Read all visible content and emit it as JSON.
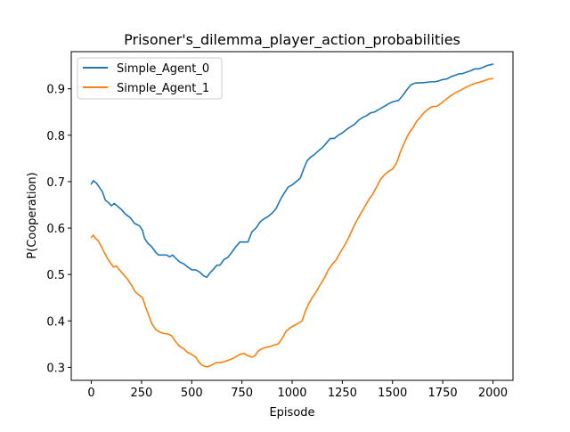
{
  "chart_data": {
    "type": "line",
    "title": "Prisoner's_dilemma_player_action_probabilities",
    "xlabel": "Episode",
    "ylabel": "P(Cooperation)",
    "xlim": [
      -100,
      2100
    ],
    "ylim": [
      0.272,
      0.98
    ],
    "xticks": [
      0,
      250,
      500,
      750,
      1000,
      1250,
      1500,
      1750,
      2000
    ],
    "yticks": [
      0.3,
      0.4,
      0.5,
      0.6,
      0.7,
      0.8,
      0.9
    ],
    "legend_position": "top-left",
    "series": [
      {
        "name": "Simple_Agent_0",
        "color": "#1f77b4",
        "points": [
          [
            0,
            0.695
          ],
          [
            10,
            0.702
          ],
          [
            25,
            0.697
          ],
          [
            40,
            0.688
          ],
          [
            55,
            0.678
          ],
          [
            70,
            0.66
          ],
          [
            85,
            0.655
          ],
          [
            100,
            0.648
          ],
          [
            115,
            0.653
          ],
          [
            130,
            0.647
          ],
          [
            150,
            0.64
          ],
          [
            170,
            0.63
          ],
          [
            195,
            0.622
          ],
          [
            215,
            0.61
          ],
          [
            240,
            0.605
          ],
          [
            255,
            0.595
          ],
          [
            265,
            0.578
          ],
          [
            280,
            0.568
          ],
          [
            300,
            0.56
          ],
          [
            320,
            0.548
          ],
          [
            335,
            0.542
          ],
          [
            355,
            0.542
          ],
          [
            375,
            0.542
          ],
          [
            390,
            0.538
          ],
          [
            405,
            0.542
          ],
          [
            420,
            0.535
          ],
          [
            440,
            0.527
          ],
          [
            460,
            0.523
          ],
          [
            480,
            0.516
          ],
          [
            500,
            0.51
          ],
          [
            520,
            0.51
          ],
          [
            540,
            0.505
          ],
          [
            560,
            0.497
          ],
          [
            575,
            0.494
          ],
          [
            590,
            0.503
          ],
          [
            610,
            0.512
          ],
          [
            625,
            0.52
          ],
          [
            640,
            0.52
          ],
          [
            660,
            0.532
          ],
          [
            680,
            0.537
          ],
          [
            700,
            0.548
          ],
          [
            720,
            0.56
          ],
          [
            740,
            0.57
          ],
          [
            760,
            0.57
          ],
          [
            780,
            0.57
          ],
          [
            800,
            0.592
          ],
          [
            820,
            0.6
          ],
          [
            840,
            0.613
          ],
          [
            860,
            0.62
          ],
          [
            880,
            0.625
          ],
          [
            900,
            0.632
          ],
          [
            920,
            0.642
          ],
          [
            940,
            0.66
          ],
          [
            960,
            0.675
          ],
          [
            980,
            0.688
          ],
          [
            1000,
            0.693
          ],
          [
            1020,
            0.7
          ],
          [
            1040,
            0.707
          ],
          [
            1060,
            0.73
          ],
          [
            1075,
            0.745
          ],
          [
            1090,
            0.752
          ],
          [
            1110,
            0.758
          ],
          [
            1130,
            0.766
          ],
          [
            1150,
            0.773
          ],
          [
            1170,
            0.783
          ],
          [
            1190,
            0.793
          ],
          [
            1210,
            0.793
          ],
          [
            1230,
            0.8
          ],
          [
            1250,
            0.805
          ],
          [
            1270,
            0.812
          ],
          [
            1290,
            0.818
          ],
          [
            1310,
            0.823
          ],
          [
            1330,
            0.832
          ],
          [
            1350,
            0.838
          ],
          [
            1370,
            0.842
          ],
          [
            1390,
            0.848
          ],
          [
            1410,
            0.85
          ],
          [
            1430,
            0.855
          ],
          [
            1450,
            0.86
          ],
          [
            1470,
            0.865
          ],
          [
            1490,
            0.87
          ],
          [
            1510,
            0.873
          ],
          [
            1530,
            0.875
          ],
          [
            1550,
            0.885
          ],
          [
            1570,
            0.897
          ],
          [
            1590,
            0.908
          ],
          [
            1610,
            0.912
          ],
          [
            1630,
            0.913
          ],
          [
            1650,
            0.913
          ],
          [
            1670,
            0.914
          ],
          [
            1690,
            0.915
          ],
          [
            1710,
            0.915
          ],
          [
            1730,
            0.917
          ],
          [
            1750,
            0.92
          ],
          [
            1770,
            0.921
          ],
          [
            1790,
            0.926
          ],
          [
            1810,
            0.929
          ],
          [
            1830,
            0.932
          ],
          [
            1850,
            0.933
          ],
          [
            1870,
            0.936
          ],
          [
            1890,
            0.939
          ],
          [
            1910,
            0.943
          ],
          [
            1930,
            0.943
          ],
          [
            1950,
            0.946
          ],
          [
            1970,
            0.95
          ],
          [
            1990,
            0.952
          ],
          [
            2000,
            0.953
          ]
        ]
      },
      {
        "name": "Simple_Agent_1",
        "color": "#ff7f0e",
        "points": [
          [
            0,
            0.58
          ],
          [
            10,
            0.585
          ],
          [
            20,
            0.578
          ],
          [
            35,
            0.572
          ],
          [
            50,
            0.56
          ],
          [
            65,
            0.547
          ],
          [
            80,
            0.535
          ],
          [
            95,
            0.525
          ],
          [
            110,
            0.516
          ],
          [
            125,
            0.518
          ],
          [
            140,
            0.51
          ],
          [
            160,
            0.5
          ],
          [
            180,
            0.49
          ],
          [
            200,
            0.477
          ],
          [
            220,
            0.462
          ],
          [
            240,
            0.455
          ],
          [
            255,
            0.45
          ],
          [
            270,
            0.43
          ],
          [
            285,
            0.413
          ],
          [
            300,
            0.395
          ],
          [
            320,
            0.382
          ],
          [
            340,
            0.376
          ],
          [
            360,
            0.373
          ],
          [
            380,
            0.372
          ],
          [
            400,
            0.368
          ],
          [
            420,
            0.355
          ],
          [
            440,
            0.345
          ],
          [
            460,
            0.34
          ],
          [
            480,
            0.332
          ],
          [
            500,
            0.328
          ],
          [
            520,
            0.322
          ],
          [
            535,
            0.312
          ],
          [
            550,
            0.305
          ],
          [
            565,
            0.302
          ],
          [
            580,
            0.301
          ],
          [
            600,
            0.305
          ],
          [
            620,
            0.31
          ],
          [
            640,
            0.31
          ],
          [
            660,
            0.312
          ],
          [
            680,
            0.315
          ],
          [
            700,
            0.318
          ],
          [
            720,
            0.323
          ],
          [
            740,
            0.328
          ],
          [
            760,
            0.33
          ],
          [
            780,
            0.325
          ],
          [
            800,
            0.322
          ],
          [
            815,
            0.325
          ],
          [
            830,
            0.335
          ],
          [
            850,
            0.34
          ],
          [
            870,
            0.343
          ],
          [
            890,
            0.345
          ],
          [
            910,
            0.348
          ],
          [
            930,
            0.35
          ],
          [
            950,
            0.362
          ],
          [
            970,
            0.378
          ],
          [
            990,
            0.385
          ],
          [
            1010,
            0.39
          ],
          [
            1030,
            0.395
          ],
          [
            1050,
            0.4
          ],
          [
            1065,
            0.42
          ],
          [
            1080,
            0.435
          ],
          [
            1100,
            0.45
          ],
          [
            1120,
            0.463
          ],
          [
            1140,
            0.478
          ],
          [
            1160,
            0.492
          ],
          [
            1180,
            0.51
          ],
          [
            1200,
            0.522
          ],
          [
            1220,
            0.532
          ],
          [
            1240,
            0.548
          ],
          [
            1260,
            0.562
          ],
          [
            1280,
            0.578
          ],
          [
            1300,
            0.597
          ],
          [
            1320,
            0.615
          ],
          [
            1340,
            0.63
          ],
          [
            1360,
            0.645
          ],
          [
            1380,
            0.66
          ],
          [
            1400,
            0.672
          ],
          [
            1420,
            0.688
          ],
          [
            1440,
            0.705
          ],
          [
            1460,
            0.715
          ],
          [
            1480,
            0.722
          ],
          [
            1500,
            0.727
          ],
          [
            1520,
            0.74
          ],
          [
            1540,
            0.765
          ],
          [
            1560,
            0.785
          ],
          [
            1580,
            0.803
          ],
          [
            1600,
            0.815
          ],
          [
            1620,
            0.83
          ],
          [
            1640,
            0.84
          ],
          [
            1660,
            0.85
          ],
          [
            1680,
            0.857
          ],
          [
            1700,
            0.862
          ],
          [
            1720,
            0.862
          ],
          [
            1740,
            0.868
          ],
          [
            1760,
            0.875
          ],
          [
            1780,
            0.882
          ],
          [
            1800,
            0.888
          ],
          [
            1820,
            0.893
          ],
          [
            1840,
            0.897
          ],
          [
            1860,
            0.902
          ],
          [
            1880,
            0.906
          ],
          [
            1900,
            0.91
          ],
          [
            1920,
            0.913
          ],
          [
            1940,
            0.915
          ],
          [
            1960,
            0.918
          ],
          [
            1980,
            0.921
          ],
          [
            2000,
            0.922
          ]
        ]
      }
    ]
  }
}
